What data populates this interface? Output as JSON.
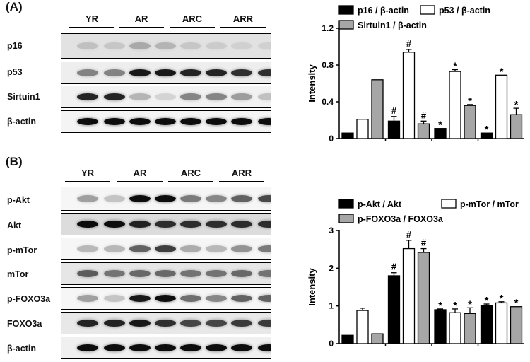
{
  "panel_a": {
    "label": "(A)",
    "lanes": [
      "YR",
      "AR",
      "ARC",
      "ARR"
    ],
    "blot_rows": [
      "p16",
      "p53",
      "Sirtuin1",
      "β-actin"
    ]
  },
  "panel_b": {
    "label": "(B)",
    "lanes": [
      "YR",
      "AR",
      "ARC",
      "ARR"
    ],
    "blot_rows": [
      "p-Akt",
      "Akt",
      "p-mTor",
      "mTor",
      "p-FOXO3a",
      "FOXO3a",
      "β-actin"
    ]
  },
  "chart_data": [
    {
      "type": "bar",
      "categories": [
        "YR",
        "AR",
        "ARC",
        "ARR"
      ],
      "category_labels_shown": false,
      "ylabel": "Intensity",
      "ylim": [
        0,
        1.2
      ],
      "yticks": [
        "0",
        "0.4",
        "0.8",
        "1.2"
      ],
      "legend_placement": "top",
      "series": [
        {
          "name": "p16 / β-actin",
          "color": "#000000",
          "values": [
            0.06,
            0.19,
            0.11,
            0.06
          ],
          "errors": [
            0.0,
            0.05,
            0.0,
            0.0
          ],
          "marks": [
            "",
            "#",
            "*",
            "*"
          ]
        },
        {
          "name": "p53 / β-actin",
          "color": "#ffffff",
          "values": [
            0.21,
            0.94,
            0.73,
            0.69
          ],
          "errors": [
            0.0,
            0.03,
            0.02,
            0.0
          ],
          "marks": [
            "",
            "#",
            "*",
            "*"
          ]
        },
        {
          "name": "Sirtuin1 / β-actin",
          "color": "#a6a6a6",
          "values": [
            0.64,
            0.16,
            0.36,
            0.26
          ],
          "errors": [
            0.0,
            0.03,
            0.01,
            0.07
          ],
          "marks": [
            "",
            "#",
            "*",
            "*"
          ]
        }
      ]
    },
    {
      "type": "bar",
      "categories": [
        "YR",
        "AR",
        "ARC",
        "ARR"
      ],
      "category_labels_shown": false,
      "ylabel": "Intensity",
      "ylim": [
        0,
        3
      ],
      "yticks": [
        "0",
        "1",
        "2",
        "3"
      ],
      "legend_placement": "top",
      "series": [
        {
          "name": "p-Akt / Akt",
          "color": "#000000",
          "values": [
            0.22,
            1.8,
            0.9,
            1.0
          ],
          "errors": [
            0.0,
            0.08,
            0.02,
            0.05
          ],
          "marks": [
            "",
            "#",
            "*",
            "*"
          ]
        },
        {
          "name": "p-mTor / mTor",
          "color": "#ffffff",
          "values": [
            0.88,
            2.52,
            0.82,
            1.08
          ],
          "errors": [
            0.06,
            0.22,
            0.1,
            0.03
          ],
          "marks": [
            "",
            "#",
            "*",
            "*"
          ]
        },
        {
          "name": "p-FOXO3a / FOXO3a",
          "color": "#a6a6a6",
          "values": [
            0.26,
            2.42,
            0.8,
            0.98
          ],
          "errors": [
            0.0,
            0.1,
            0.15,
            0.0
          ],
          "marks": [
            "",
            "#",
            "*",
            "*"
          ]
        }
      ]
    }
  ]
}
